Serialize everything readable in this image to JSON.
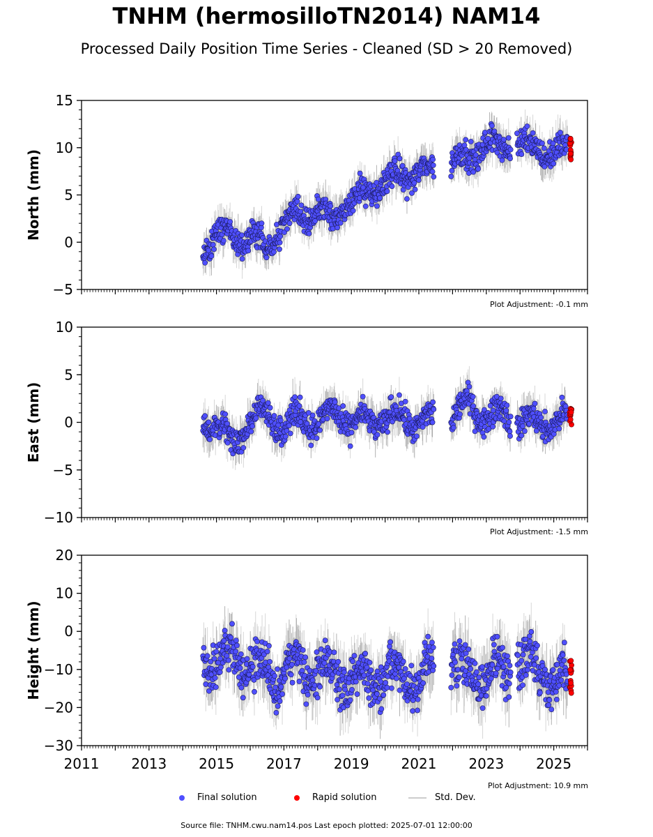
{
  "title": "TNHM (hermosilloTN2014) NAM14",
  "subtitle": "Processed Daily Position Time Series - Cleaned (SD > 20 Removed)",
  "legend": {
    "final": "Final solution",
    "rapid": "Rapid solution",
    "std": "Std. Dev."
  },
  "footer": "Source file: TNHM.cwu.nam14.pos  Last epoch plotted: 2025-07-01 12:00:00",
  "colors": {
    "final": "#4f4fff",
    "rapid": "#ff0000",
    "std": "#cccccc",
    "std_dense": "#555555"
  },
  "chart_data": [
    {
      "type": "scatter",
      "ylabel": "North (mm)",
      "ylim": [
        -5,
        15
      ],
      "yticks": [
        -5,
        0,
        5,
        10,
        15
      ],
      "xlim": [
        2011,
        2026
      ],
      "adjustment": "Plot Adjustment: -0.1 mm",
      "series": [
        {
          "name": "Final solution",
          "x": [
            2014.6,
            2015.0,
            2015.5,
            2016.0,
            2016.5,
            2017.0,
            2017.5,
            2018.0,
            2018.5,
            2019.0,
            2019.5,
            2020.0,
            2020.5,
            2021.0,
            2021.4,
            2022.0,
            2022.5,
            2023.0,
            2023.5,
            2024.0,
            2024.5,
            2025.0,
            2025.4
          ],
          "y": [
            -1.0,
            1.0,
            0.5,
            0.5,
            -0.5,
            2.0,
            2.8,
            3.5,
            2.5,
            4.5,
            5.0,
            6.5,
            7.0,
            7.5,
            7.5,
            8.5,
            9.0,
            10.5,
            10.0,
            10.5,
            10.0,
            9.5,
            9.5
          ]
        },
        {
          "name": "Rapid solution",
          "x": [
            2025.5
          ],
          "y": [
            9.8
          ]
        }
      ]
    },
    {
      "type": "scatter",
      "ylabel": "East (mm)",
      "ylim": [
        -10,
        10
      ],
      "yticks": [
        -10,
        -5,
        0,
        5,
        10
      ],
      "xlim": [
        2011,
        2026
      ],
      "adjustment": "Plot Adjustment: -1.5 mm",
      "series": [
        {
          "name": "Final solution",
          "x": [
            2014.6,
            2015.0,
            2015.5,
            2016.0,
            2016.5,
            2017.0,
            2017.5,
            2018.0,
            2018.5,
            2019.0,
            2019.5,
            2020.0,
            2020.5,
            2021.0,
            2021.4,
            2022.0,
            2022.5,
            2023.0,
            2023.5,
            2024.0,
            2024.5,
            2025.0,
            2025.4
          ],
          "y": [
            0.5,
            -0.5,
            -2.0,
            0.0,
            1.5,
            -1.0,
            1.0,
            -0.5,
            1.5,
            -0.5,
            0.5,
            0.0,
            1.0,
            -0.5,
            0.5,
            0.0,
            2.5,
            0.0,
            1.5,
            -0.5,
            0.5,
            -0.5,
            0.5
          ]
        },
        {
          "name": "Rapid solution",
          "x": [
            2025.5
          ],
          "y": [
            0.8
          ]
        }
      ]
    },
    {
      "type": "scatter",
      "ylabel": "Height (mm)",
      "ylim": [
        -30,
        20
      ],
      "yticks": [
        -30,
        -20,
        -10,
        0,
        10,
        20
      ],
      "xlim": [
        2011,
        2026
      ],
      "xticks": [
        2011,
        2013,
        2015,
        2017,
        2019,
        2021,
        2023,
        2025
      ],
      "adjustment": "Plot Adjustment: 10.9 mm",
      "series": [
        {
          "name": "Final solution",
          "x": [
            2014.6,
            2015.0,
            2015.5,
            2016.0,
            2016.5,
            2017.0,
            2017.5,
            2018.0,
            2018.5,
            2019.0,
            2019.5,
            2020.0,
            2020.5,
            2021.0,
            2021.4,
            2022.0,
            2022.5,
            2023.0,
            2023.5,
            2024.0,
            2024.5,
            2025.0,
            2025.4
          ],
          "y": [
            -6,
            -9,
            -4,
            -11,
            -10,
            -12,
            -8,
            -12,
            -10,
            -13,
            -12,
            -13,
            -11,
            -14,
            -8,
            -10,
            -11,
            -13,
            -8,
            -10,
            -8,
            -14,
            -11
          ]
        },
        {
          "name": "Rapid solution",
          "x": [
            2025.5
          ],
          "y": [
            -12
          ]
        }
      ]
    }
  ]
}
